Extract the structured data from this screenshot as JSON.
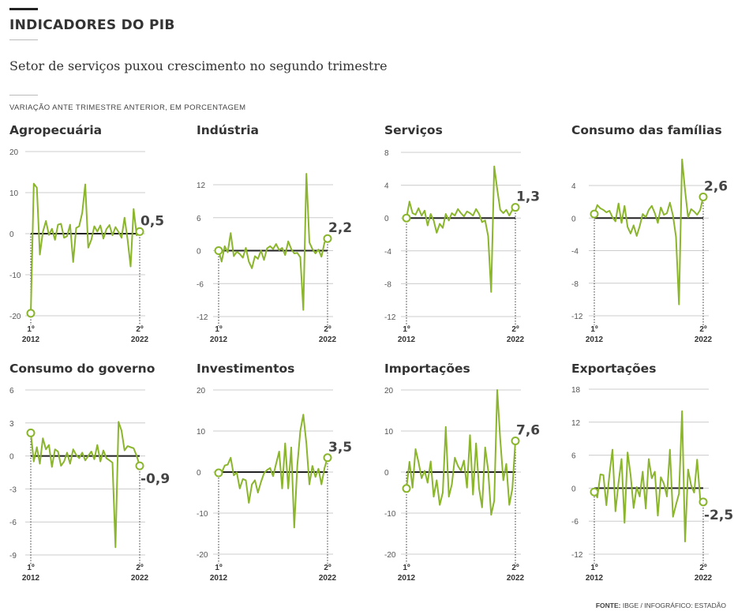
{
  "header": {
    "kicker": "INDICADORES DO PIB",
    "subtitle": "Setor de serviços puxou crescimento no segundo trimestre",
    "note": "VARIAÇÃO ANTE TRIMESTRE ANTERIOR, EM PORCENTAGEM"
  },
  "footer": {
    "source_label": "FONTE:",
    "source_text": "IBGE / INFOGRÁFICO: ESTADÃO"
  },
  "colors": {
    "line": "#8ab52c",
    "zero": "#222222",
    "grid": "#cccccc",
    "text": "#333333"
  },
  "chart_data": [
    {
      "type": "line",
      "title": "Agropecuária",
      "ylim": [
        -20,
        20
      ],
      "yticks": [
        20,
        10,
        0,
        -10,
        -20
      ],
      "x_start": "1º 2012",
      "x_end": "2º 2022",
      "x_start_labels": [
        "1º",
        "2012"
      ],
      "x_end_labels": [
        "2º",
        "2022"
      ],
      "first_value": "-19,4",
      "last_value": "0,5",
      "last_label": "0,5",
      "values": [
        -19.4,
        12.2,
        11.2,
        -5.1,
        0.4,
        3.1,
        -0.3,
        1.2,
        -1.5,
        2.2,
        2.4,
        -1.0,
        -0.6,
        2.2,
        -6.9,
        1.4,
        1.8,
        5.1,
        12.0,
        -3.4,
        -1.5,
        1.8,
        0.5,
        2.0,
        -1.2,
        1.1,
        2.1,
        -0.4,
        1.6,
        0.4,
        -1.0,
        3.9,
        -1.5,
        -8.0,
        6.0,
        -0.4,
        0.5
      ]
    },
    {
      "type": "line",
      "title": "Indústria",
      "ylim": [
        -12,
        12
      ],
      "yticks": [
        12,
        6,
        0,
        -6,
        -12
      ],
      "x_start": "1º 2012",
      "x_end": "2º 2022",
      "x_start_labels": [
        "1º",
        "2012"
      ],
      "x_end_labels": [
        "2º",
        "2022"
      ],
      "first_value": "0",
      "last_value": "2,2",
      "last_label": "2,2",
      "values": [
        0.0,
        -2.0,
        0.8,
        -0.3,
        3.2,
        -1.0,
        -0.2,
        -0.6,
        -1.3,
        0.5,
        -2.0,
        -3.2,
        -1.0,
        -1.5,
        0.0,
        -1.7,
        0.4,
        0.8,
        0.3,
        1.2,
        0.1,
        0.5,
        -0.8,
        1.7,
        0.3,
        -0.5,
        -0.4,
        -1.2,
        -10.8,
        14.0,
        1.5,
        0.3,
        -0.5,
        0.2,
        -1.1,
        1.5,
        2.2
      ]
    },
    {
      "type": "line",
      "title": "Serviços",
      "ylim": [
        -12,
        8
      ],
      "yticks": [
        8,
        4,
        0,
        -4,
        -8,
        -12
      ],
      "x_start": "1º 2012",
      "x_end": "2º 2022",
      "x_start_labels": [
        "1º",
        "2012"
      ],
      "x_end_labels": [
        "2º",
        "2022"
      ],
      "first_value": "0",
      "last_value": "1,3",
      "last_label": "1,3",
      "values": [
        0.0,
        2.0,
        0.6,
        0.4,
        1.2,
        0.3,
        0.9,
        -0.9,
        0.5,
        -0.3,
        -1.8,
        -0.7,
        -1.2,
        0.5,
        -0.3,
        0.6,
        0.3,
        1.1,
        0.6,
        0.2,
        0.8,
        0.6,
        0.3,
        1.1,
        0.5,
        -0.5,
        -0.3,
        -2.2,
        -9.0,
        6.3,
        3.5,
        1.0,
        0.6,
        1.0,
        0.3,
        1.0,
        1.3
      ]
    },
    {
      "type": "line",
      "title": "Consumo das famílias",
      "ylim": [
        -12,
        8
      ],
      "yticks": [
        4,
        0,
        -4,
        -8,
        -12
      ],
      "x_start": "1º 2012",
      "x_end": "2º 2022",
      "x_start_labels": [
        "1º",
        "2012"
      ],
      "x_end_labels": [
        "2º",
        "2022"
      ],
      "first_value": "0,5",
      "last_value": "2,6",
      "last_label": "2,6",
      "values": [
        0.5,
        1.6,
        1.2,
        1.0,
        0.7,
        0.9,
        0.1,
        -0.4,
        1.8,
        -0.6,
        1.5,
        -1.1,
        -1.9,
        -0.9,
        -2.2,
        -1.0,
        0.5,
        0.1,
        1.0,
        1.5,
        0.6,
        -0.6,
        1.3,
        0.4,
        0.6,
        1.9,
        0.3,
        -2.3,
        -10.6,
        7.2,
        3.4,
        0.1,
        1.1,
        0.8,
        0.4,
        1.0,
        2.6
      ]
    },
    {
      "type": "line",
      "title": "Consumo do governo",
      "ylim": [
        -9,
        6
      ],
      "yticks": [
        6,
        3,
        0,
        -3,
        -6,
        -9
      ],
      "x_start": "1º 2012",
      "x_end": "2º 2022",
      "x_start_labels": [
        "1º",
        "2012"
      ],
      "x_end_labels": [
        "2º",
        "2022"
      ],
      "first_value": "2,1",
      "last_value": "-0,9",
      "last_label": "-0,9",
      "values": [
        2.1,
        -0.5,
        0.8,
        -0.7,
        1.6,
        0.6,
        1.0,
        -1.0,
        0.6,
        0.4,
        -0.9,
        -0.5,
        0.3,
        -0.7,
        0.6,
        0.1,
        -0.2,
        0.3,
        -0.4,
        0.0,
        0.4,
        -0.3,
        1.0,
        -0.5,
        0.5,
        -0.2,
        -0.4,
        -0.6,
        -8.3,
        3.1,
        2.3,
        0.5,
        0.9,
        0.8,
        0.7,
        0.0,
        -0.9
      ]
    },
    {
      "type": "line",
      "title": "Investimentos",
      "ylim": [
        -20,
        20
      ],
      "yticks": [
        20,
        10,
        0,
        -10,
        -20
      ],
      "x_start": "1º 2012",
      "x_end": "2º 2022",
      "x_start_labels": [
        "1º",
        "2012"
      ],
      "x_end_labels": [
        "2º",
        "2022"
      ],
      "first_value": "-0,2",
      "last_value": "3,5",
      "last_label": "3,5",
      "values": [
        -0.2,
        -0.2,
        1.6,
        1.8,
        3.5,
        -0.8,
        -0.1,
        -4.0,
        -1.7,
        -2.0,
        -7.5,
        -3.0,
        -2.0,
        -5.0,
        -2.4,
        -0.3,
        0.5,
        1.0,
        -1.0,
        2.0,
        5.0,
        -4.0,
        7.0,
        -4.0,
        6.0,
        -13.5,
        1.6,
        10.0,
        14.0,
        7.0,
        -3.0,
        1.5,
        -1.2,
        0.8,
        -3.0,
        1.0,
        3.5
      ]
    },
    {
      "type": "line",
      "title": "Importações",
      "ylim": [
        -20,
        20
      ],
      "yticks": [
        20,
        10,
        0,
        -10,
        -20
      ],
      "x_start": "1º 2012",
      "x_end": "2º 2022",
      "x_start_labels": [
        "1º",
        "2012"
      ],
      "x_end_labels": [
        "2º",
        "2022"
      ],
      "first_value": "-4,0",
      "last_value": "7,6",
      "last_label": "7,6",
      "values": [
        -4.0,
        2.5,
        -3.8,
        5.6,
        2.4,
        -1.5,
        0.3,
        -2.6,
        2.6,
        -6.0,
        -2.0,
        -8.0,
        -5.0,
        11.0,
        -6.0,
        -3.0,
        3.5,
        1.5,
        0.3,
        2.8,
        -3.8,
        9.0,
        -5.5,
        7.0,
        -4.0,
        -8.6,
        6.0,
        0.5,
        -10.4,
        -7.0,
        20.0,
        8.0,
        -2.0,
        2.0,
        -8.0,
        -4.0,
        7.6
      ]
    },
    {
      "type": "line",
      "title": "Exportações",
      "ylim": [
        -12,
        18
      ],
      "yticks": [
        18,
        12,
        6,
        0,
        -6,
        -12
      ],
      "x_start": "1º 2012",
      "x_end": "2º 2022",
      "x_start_labels": [
        "1º",
        "2012"
      ],
      "x_end_labels": [
        "2º",
        "2022"
      ],
      "first_value": "-0,7",
      "last_value": "-2,5",
      "last_label": "-2,5",
      "values": [
        -0.7,
        -1.7,
        2.5,
        2.4,
        -3.1,
        2.5,
        7.0,
        -4.2,
        1.0,
        5.3,
        -6.3,
        6.5,
        2.4,
        -3.6,
        0.2,
        -1.5,
        3.0,
        -3.7,
        5.3,
        1.8,
        3.0,
        -5.0,
        2.0,
        0.8,
        -1.5,
        7.0,
        -5.2,
        -3.0,
        -1.0,
        14.0,
        -9.7,
        3.4,
        0.5,
        -0.8,
        5.2,
        -2.0,
        -2.5
      ]
    }
  ]
}
